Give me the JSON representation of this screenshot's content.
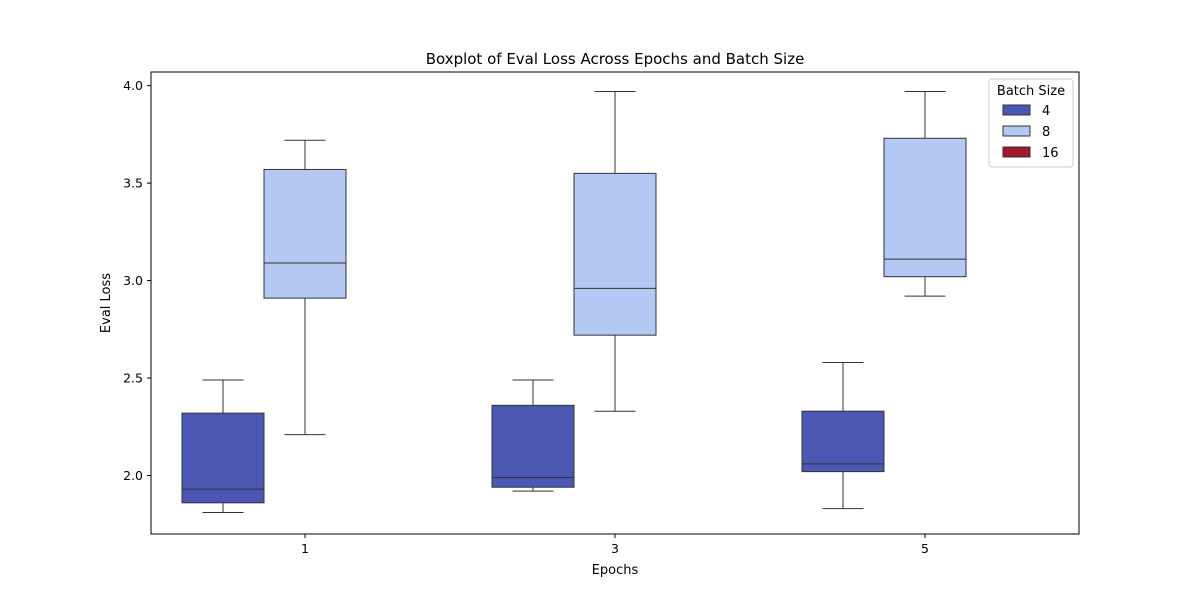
{
  "chart_data": {
    "type": "boxplot",
    "title": "Boxplot of Eval Loss Across Epochs and Batch Size",
    "xlabel": "Epochs",
    "ylabel": "Eval Loss",
    "categories": [
      "1",
      "3",
      "5"
    ],
    "ylim": [
      1.7,
      4.07
    ],
    "yticks": [
      2.0,
      2.5,
      3.0,
      3.5,
      4.0
    ],
    "ytick_labels": [
      "2.0",
      "2.5",
      "3.0",
      "3.5",
      "4.0"
    ],
    "grid": false,
    "legend": {
      "title": "Batch Size",
      "position": "top-right",
      "entries": [
        "4",
        "8",
        "16"
      ]
    },
    "series": [
      {
        "name": "4",
        "color": "#4a58b3",
        "boxes": [
          {
            "category": "1",
            "whisker_low": 1.81,
            "q1": 1.86,
            "median": 1.93,
            "q3": 2.32,
            "whisker_high": 2.49
          },
          {
            "category": "3",
            "whisker_low": 1.92,
            "q1": 1.94,
            "median": 1.99,
            "q3": 2.36,
            "whisker_high": 2.49
          },
          {
            "category": "5",
            "whisker_low": 1.83,
            "q1": 2.02,
            "median": 2.06,
            "q3": 2.33,
            "whisker_high": 2.58
          }
        ]
      },
      {
        "name": "8",
        "color": "#b3c9f3",
        "boxes": [
          {
            "category": "1",
            "whisker_low": 2.21,
            "q1": 2.91,
            "median": 3.09,
            "q3": 3.57,
            "whisker_high": 3.72
          },
          {
            "category": "3",
            "whisker_low": 2.33,
            "q1": 2.72,
            "median": 2.96,
            "q3": 3.55,
            "whisker_high": 3.97
          },
          {
            "category": "5",
            "whisker_low": 2.92,
            "q1": 3.02,
            "median": 3.11,
            "q3": 3.73,
            "whisker_high": 3.97
          }
        ]
      },
      {
        "name": "16",
        "color": "#a4172f",
        "boxes": []
      }
    ]
  }
}
